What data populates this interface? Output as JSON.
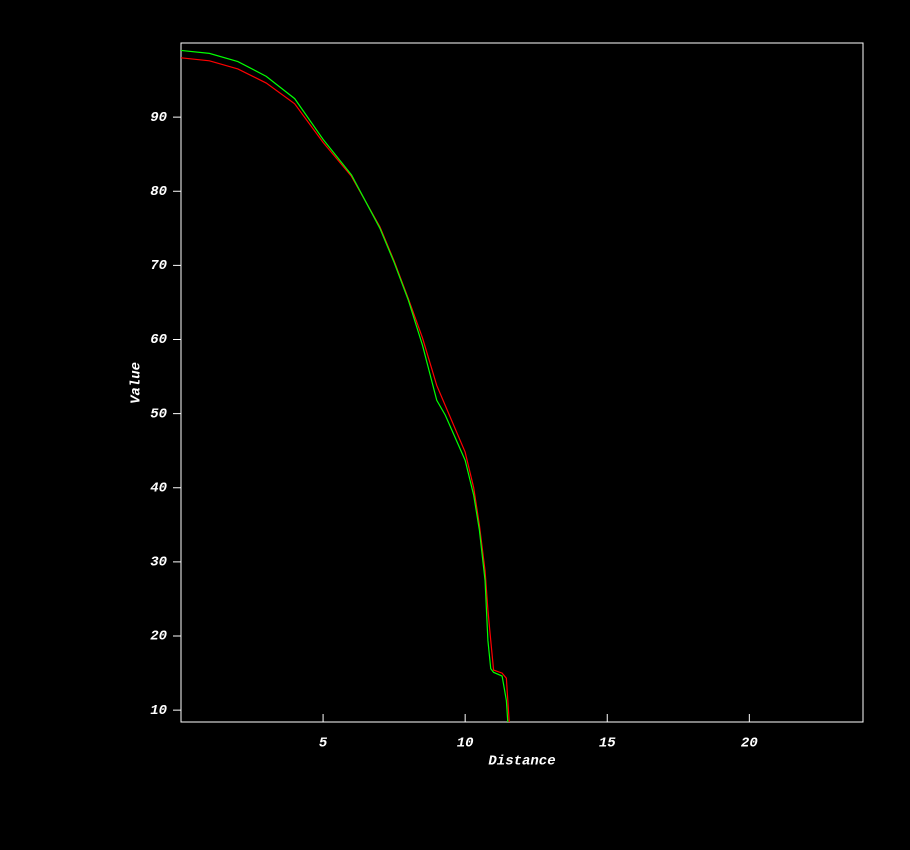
{
  "chart_data": {
    "type": "line",
    "x_label": "Distance",
    "y_label": "Value",
    "xlim": [
      0,
      24
    ],
    "ylim": [
      8.4,
      100
    ],
    "xticks": [
      5,
      10,
      15,
      20
    ],
    "yticks": [
      10,
      20,
      30,
      40,
      50,
      60,
      70,
      80,
      90
    ],
    "series": [
      {
        "name": "red",
        "color": "#ff0000",
        "x": [
          0,
          1,
          2,
          3,
          4,
          5,
          6,
          7,
          7.5,
          8,
          8.5,
          9,
          9.3,
          10,
          10.3,
          10.5,
          10.7,
          10.8,
          10.9,
          11,
          11.3,
          11.45,
          11.55
        ],
        "values": [
          98,
          97.6,
          96.5,
          94.6,
          91.8,
          86.6,
          82,
          75.2,
          70.6,
          65.5,
          60.2,
          53.8,
          51.1,
          44.8,
          40,
          35,
          28.8,
          23.5,
          19.4,
          15.4,
          15,
          14.3,
          8.4
        ]
      },
      {
        "name": "green",
        "color": "#00ff00",
        "x": [
          0,
          1,
          2,
          3,
          4,
          5,
          6,
          7,
          7.5,
          8,
          8.5,
          9,
          9.3,
          10,
          10.3,
          10.5,
          10.7,
          10.8,
          10.9,
          11,
          11.3,
          11.45,
          11.5
        ],
        "values": [
          99,
          98.6,
          97.5,
          95.5,
          92.5,
          87,
          82.2,
          75,
          70.4,
          65.3,
          59.2,
          51.8,
          49.8,
          43.7,
          39,
          34.3,
          27.5,
          19.4,
          15.6,
          15.1,
          14.6,
          11.3,
          8.4
        ]
      }
    ]
  }
}
